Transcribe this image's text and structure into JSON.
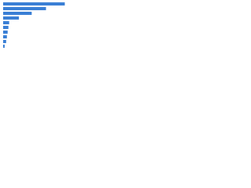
{
  "chart_data": {
    "type": "barh",
    "categories": [
      null,
      null,
      null,
      null,
      null,
      null,
      null,
      null,
      null,
      null
    ],
    "values": [
      82,
      57,
      38,
      21,
      8,
      7,
      6,
      5,
      4,
      2
    ],
    "color": "#3a7fd5",
    "xlim": [
      0,
      96
    ]
  }
}
